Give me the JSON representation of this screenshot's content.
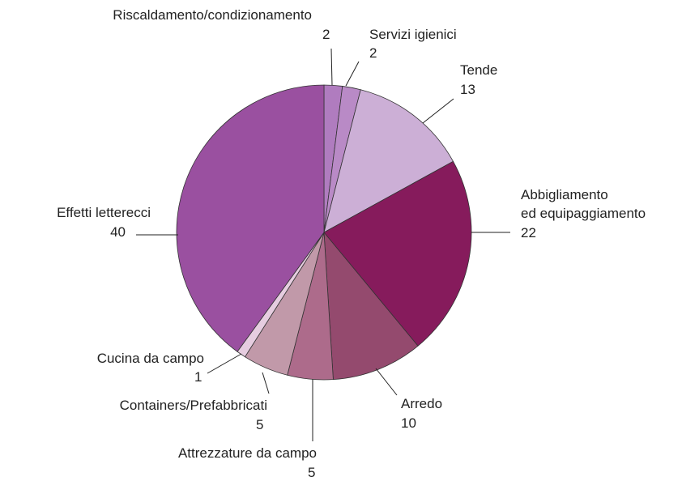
{
  "chart_data": {
    "type": "pie",
    "categories": [
      "Riscaldamento/condizionamento",
      "Servizi igienici",
      "Tende",
      "Abbigliamento\ned equipaggiamento",
      "Arredo",
      "Attrezzature da campo",
      "Containers/Prefabbricati",
      "Cucina da campo",
      "Effetti letterecci"
    ],
    "values": [
      2,
      2,
      13,
      22,
      10,
      5,
      5,
      1,
      40
    ],
    "colors": [
      "#b07cbf",
      "#b98ac6",
      "#ccafd6",
      "#861b5c",
      "#944a6e",
      "#ad6b8b",
      "#c199a9",
      "#e6cde0",
      "#9a50a0"
    ]
  }
}
